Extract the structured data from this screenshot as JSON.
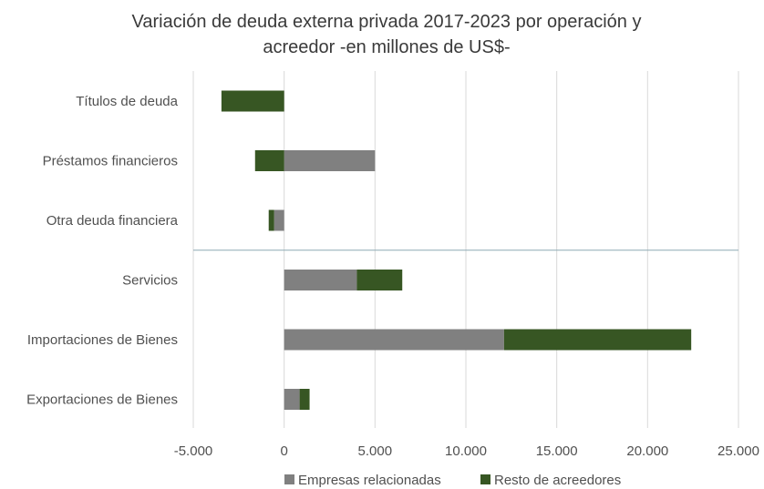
{
  "chart_data": {
    "type": "bar",
    "orientation": "horizontal",
    "stacked": true,
    "title": [
      "Variación de deuda externa privada 2017-2023 por operación y",
      "acreedor -en millones de US$-"
    ],
    "categories": [
      "Títulos de deuda",
      "Préstamos financieros",
      "Otra deuda financiera",
      "Servicios",
      "Importaciones de Bienes",
      "Exportaciones de Bienes"
    ],
    "series": [
      {
        "name": "Empresas relacionadas",
        "color": "#808080",
        "values": [
          0,
          5000,
          -550,
          4000,
          12100,
          850
        ]
      },
      {
        "name": "Resto de acreedores",
        "color": "#375623",
        "values": [
          -3450,
          -1600,
          -300,
          2500,
          10300,
          550
        ]
      }
    ],
    "xlim": [
      -5000,
      25000
    ],
    "x_ticks": [
      -5000,
      0,
      5000,
      10000,
      15000,
      20000,
      25000
    ],
    "x_tick_labels": [
      "-5.000",
      "0",
      "5.000",
      "10.000",
      "15.000",
      "20.000",
      "25.000"
    ],
    "grid": "vertical",
    "legend_position": "bottom",
    "separator_after_category": "Otra deuda financiera"
  }
}
